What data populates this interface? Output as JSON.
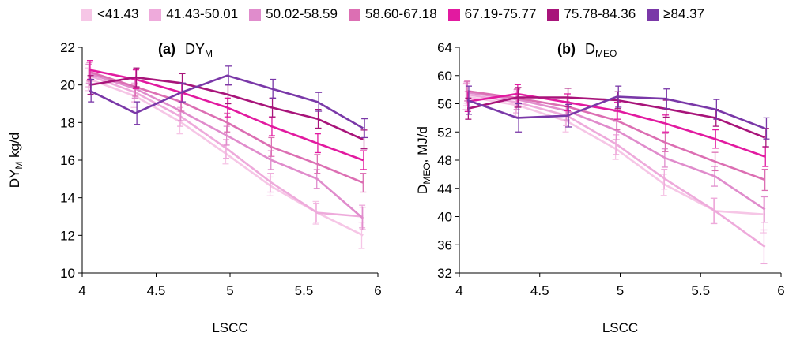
{
  "legend": [
    {
      "label": "<41.43",
      "color": "#f6c6e6"
    },
    {
      "label": "41.43-50.01",
      "color": "#eeaadb"
    },
    {
      "label": "50.02-58.59",
      "color": "#e08ccc"
    },
    {
      "label": "58.60-67.18",
      "color": "#dc6fb3"
    },
    {
      "label": "67.19-75.77",
      "color": "#e21aa0"
    },
    {
      "label": "75.78-84.36",
      "color": "#a8147a"
    },
    {
      "label": "≥84.37",
      "color": "#7a38a8"
    }
  ],
  "chart_data": [
    {
      "type": "line",
      "panel_label": "(a)",
      "title_main": "DY",
      "title_sub": "M",
      "xlabel": "LSCC",
      "ylabel_main": "DY",
      "ylabel_sub": "M",
      "ylabel_rest": " kg/d",
      "xlim": [
        4,
        6
      ],
      "ylim": [
        10,
        22
      ],
      "xticks": [
        "4",
        "4.5",
        "5",
        "5.5",
        "6"
      ],
      "yticks": [
        "10",
        "12",
        "14",
        "16",
        "18",
        "20",
        "22"
      ],
      "x": [
        4.05,
        4.36,
        4.67,
        4.98,
        5.28,
        5.59,
        5.9
      ],
      "series": [
        {
          "name": "<41.43",
          "values": [
            20.3,
            19.4,
            18.0,
            16.3,
            14.6,
            13.2,
            12.0
          ],
          "err": [
            0.6,
            0.6,
            0.6,
            0.5,
            0.5,
            0.6,
            0.7
          ]
        },
        {
          "name": "41.43-50.01",
          "values": [
            20.5,
            19.6,
            18.3,
            16.6,
            14.8,
            13.2,
            13.0
          ],
          "err": [
            0.6,
            0.5,
            0.5,
            0.5,
            0.5,
            0.5,
            0.6
          ]
        },
        {
          "name": "50.02-58.59",
          "values": [
            20.6,
            19.8,
            18.6,
            17.3,
            16.0,
            15.0,
            12.9
          ],
          "err": [
            0.5,
            0.5,
            0.5,
            0.5,
            0.5,
            0.5,
            0.6
          ]
        },
        {
          "name": "58.60-67.18",
          "values": [
            20.7,
            19.9,
            19.1,
            18.0,
            16.7,
            15.8,
            14.8
          ],
          "err": [
            0.5,
            0.5,
            0.5,
            0.5,
            0.5,
            0.5,
            0.5
          ]
        },
        {
          "name": "67.19-75.77",
          "values": [
            20.8,
            20.3,
            19.6,
            18.8,
            17.8,
            16.9,
            16.0
          ],
          "err": [
            0.5,
            0.5,
            0.5,
            0.5,
            0.5,
            0.5,
            0.5
          ]
        },
        {
          "name": "75.78-84.36",
          "values": [
            20.0,
            20.4,
            20.1,
            19.5,
            18.8,
            18.2,
            17.1
          ],
          "err": [
            0.5,
            0.5,
            0.5,
            0.5,
            0.5,
            0.5,
            0.5
          ]
        },
        {
          "name": "≥84.37",
          "values": [
            19.7,
            18.5,
            19.6,
            20.5,
            19.8,
            19.1,
            17.7
          ],
          "err": [
            0.6,
            0.6,
            0.5,
            0.5,
            0.5,
            0.5,
            0.5
          ]
        }
      ]
    },
    {
      "type": "line",
      "panel_label": "(b)",
      "title_main": "D",
      "title_sub": "MEO",
      "xlabel": "LSCC",
      "ylabel_main": "D",
      "ylabel_sub": "MEO",
      "ylabel_rest": ", MJ/d",
      "xlim": [
        4,
        6
      ],
      "ylim": [
        32,
        64
      ],
      "xticks": [
        "4",
        "4.5",
        "5",
        "5.5",
        "6"
      ],
      "yticks": [
        "32",
        "36",
        "40",
        "44",
        "48",
        "52",
        "56",
        "60",
        "64"
      ],
      "x": [
        4.05,
        4.36,
        4.67,
        4.98,
        5.28,
        5.59,
        5.9
      ],
      "series": [
        {
          "name": "<41.43",
          "values": [
            57.0,
            55.8,
            53.5,
            49.5,
            44.5,
            40.8,
            40.3
          ],
          "err": [
            1.8,
            1.6,
            1.5,
            1.4,
            1.5,
            1.8,
            2.6
          ]
        },
        {
          "name": "41.43-50.01",
          "values": [
            57.3,
            56.2,
            54.3,
            50.2,
            45.3,
            40.8,
            35.7
          ],
          "err": [
            1.6,
            1.5,
            1.4,
            1.4,
            1.4,
            1.8,
            2.4
          ]
        },
        {
          "name": "50.02-58.59",
          "values": [
            57.6,
            56.6,
            55.0,
            52.2,
            48.3,
            45.7,
            41.0
          ],
          "err": [
            1.5,
            1.4,
            1.3,
            1.3,
            1.3,
            1.4,
            1.8
          ]
        },
        {
          "name": "58.60-67.18",
          "values": [
            57.8,
            56.8,
            55.6,
            53.6,
            50.5,
            47.8,
            45.2
          ],
          "err": [
            1.4,
            1.3,
            1.3,
            1.3,
            1.3,
            1.3,
            1.5
          ]
        },
        {
          "name": "67.19-75.77",
          "values": [
            56.3,
            57.4,
            56.2,
            55.0,
            53.2,
            51.0,
            48.5
          ],
          "err": [
            1.4,
            1.3,
            1.2,
            1.2,
            1.2,
            1.3,
            1.4
          ]
        },
        {
          "name": "75.78-84.36",
          "values": [
            55.3,
            56.9,
            56.9,
            56.5,
            55.3,
            54.0,
            51.2
          ],
          "err": [
            1.5,
            1.4,
            1.3,
            1.2,
            1.2,
            1.2,
            1.3
          ]
        },
        {
          "name": "≥84.37",
          "values": [
            56.5,
            54.0,
            54.3,
            57.0,
            56.7,
            55.2,
            52.5
          ],
          "err": [
            2.0,
            2.0,
            1.6,
            1.5,
            1.4,
            1.4,
            1.5
          ]
        }
      ]
    }
  ]
}
